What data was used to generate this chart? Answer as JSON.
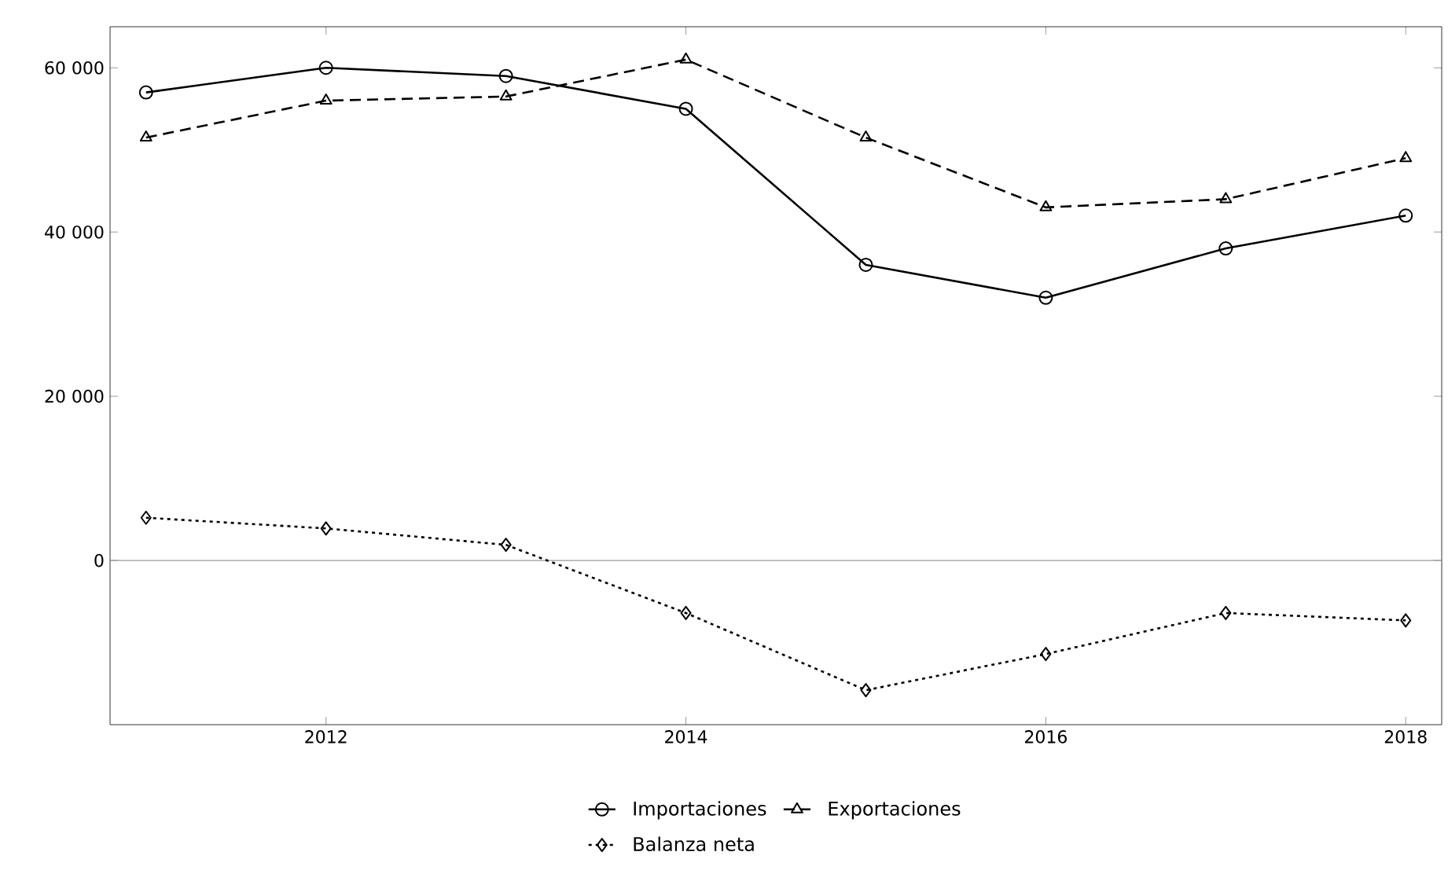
{
  "chart_data": {
    "type": "line",
    "x": [
      2011,
      2012,
      2013,
      2014,
      2015,
      2016,
      2017,
      2018
    ],
    "series": [
      {
        "name": "Importaciones",
        "color": "#000000",
        "marker": "circle",
        "line_style": "solid",
        "values": [
          57000,
          60000,
          59000,
          55000,
          36000,
          32000,
          38000,
          42000
        ]
      },
      {
        "name": "Exportaciones",
        "color": "#000000",
        "marker": "triangle",
        "line_style": "dashed",
        "values": [
          51500,
          56000,
          56500,
          61000,
          51500,
          43000,
          44000,
          49000
        ]
      },
      {
        "name": "Balanza neta",
        "color": "#000000",
        "marker": "diamond",
        "line_style": "dotted",
        "values": [
          5200,
          3900,
          1900,
          -6400,
          -15800,
          -11400,
          -6400,
          -7300
        ]
      }
    ],
    "xlim": [
      2010.8,
      2018.2
    ],
    "ylim": [
      -20000,
      65000
    ],
    "xticks": [
      2012,
      2014,
      2016,
      2018
    ],
    "yticks": [
      {
        "value": 0,
        "label": "0"
      },
      {
        "value": 20000,
        "label": "20 000"
      },
      {
        "value": 40000,
        "label": "40 000"
      },
      {
        "value": 60000,
        "label": "60 000"
      }
    ],
    "ref_lines": [
      {
        "axis": "y",
        "value": 0,
        "color": "#999999"
      }
    ],
    "grid": false,
    "legend": "bottom"
  }
}
